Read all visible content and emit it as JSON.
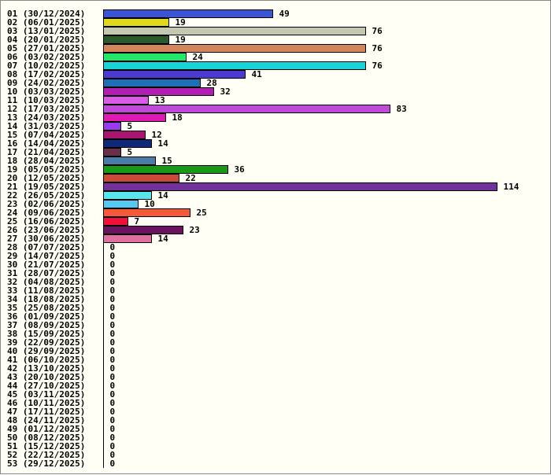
{
  "chart_data": {
    "type": "bar",
    "orientation": "horizontal",
    "title": "",
    "xlabel": "",
    "ylabel": "",
    "grid": false,
    "legend": "none",
    "xlim": [
      0,
      114
    ],
    "categories": [
      "01 (30/12/2024)",
      "02 (06/01/2025)",
      "03 (13/01/2025)",
      "04 (20/01/2025)",
      "05 (27/01/2025)",
      "06 (03/02/2025)",
      "07 (10/02/2025)",
      "08 (17/02/2025)",
      "09 (24/02/2025)",
      "10 (03/03/2025)",
      "11 (10/03/2025)",
      "12 (17/03/2025)",
      "13 (24/03/2025)",
      "14 (31/03/2025)",
      "15 (07/04/2025)",
      "16 (14/04/2025)",
      "17 (21/04/2025)",
      "18 (28/04/2025)",
      "19 (05/05/2025)",
      "20 (12/05/2025)",
      "21 (19/05/2025)",
      "22 (26/05/2025)",
      "23 (02/06/2025)",
      "24 (09/06/2025)",
      "25 (16/06/2025)",
      "26 (23/06/2025)",
      "27 (30/06/2025)",
      "28 (07/07/2025)",
      "29 (14/07/2025)",
      "30 (21/07/2025)",
      "31 (28/07/2025)",
      "32 (04/08/2025)",
      "33 (11/08/2025)",
      "34 (18/08/2025)",
      "35 (25/08/2025)",
      "36 (01/09/2025)",
      "37 (08/09/2025)",
      "38 (15/09/2025)",
      "39 (22/09/2025)",
      "40 (29/09/2025)",
      "41 (06/10/2025)",
      "42 (13/10/2025)",
      "43 (20/10/2025)",
      "44 (27/10/2025)",
      "45 (03/11/2025)",
      "46 (10/11/2025)",
      "47 (17/11/2025)",
      "48 (24/11/2025)",
      "49 (01/12/2025)",
      "50 (08/12/2025)",
      "51 (15/12/2025)",
      "52 (22/12/2025)",
      "53 (29/12/2025)"
    ],
    "values": [
      49,
      19,
      76,
      19,
      76,
      24,
      76,
      41,
      28,
      32,
      13,
      83,
      18,
      5,
      12,
      14,
      5,
      15,
      36,
      22,
      114,
      14,
      10,
      25,
      7,
      23,
      14,
      0,
      0,
      0,
      0,
      0,
      0,
      0,
      0,
      0,
      0,
      0,
      0,
      0,
      0,
      0,
      0,
      0,
      0,
      0,
      0,
      0,
      0,
      0,
      0,
      0,
      0
    ],
    "colors": [
      "#3b54d4",
      "#e0d81c",
      "#c4c8b0",
      "#2a5a2a",
      "#d4865a",
      "#22e86a",
      "#18d4d8",
      "#4a3ad0",
      "#1e6eb8",
      "#b01eb0",
      "#dc5ae8",
      "#c04ad8",
      "#e018b4",
      "#9a3af0",
      "#a81470",
      "#102878",
      "#6a3048",
      "#4a7ca8",
      "#189a18",
      "#cc4a3a",
      "#72309a",
      "#58e6ec",
      "#58c8f0",
      "#f45a3a",
      "#f0103a",
      "#6a1460",
      "#e070a0"
    ]
  }
}
